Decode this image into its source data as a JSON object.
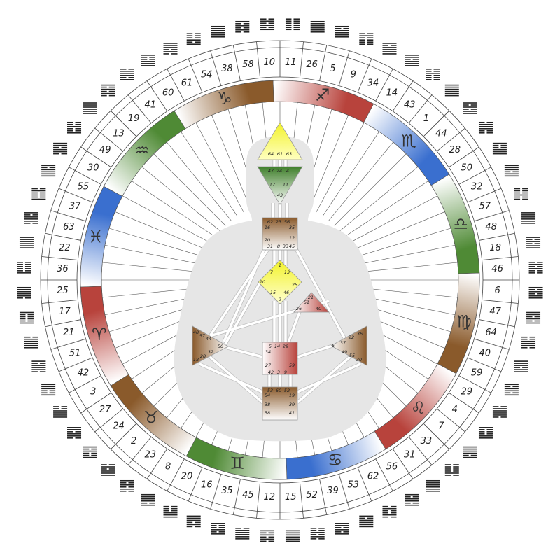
{
  "outer_ring": {
    "gates": [
      11,
      26,
      5,
      9,
      34,
      14,
      43,
      1,
      44,
      28,
      50,
      32,
      57,
      48,
      18,
      46,
      6,
      47,
      64,
      40,
      59,
      29,
      4,
      7,
      33,
      31,
      56,
      62,
      53,
      39,
      52,
      15,
      12,
      45,
      35,
      16,
      20,
      8,
      23,
      2,
      24,
      27,
      3,
      42,
      51,
      21,
      17,
      25,
      36,
      22,
      63,
      37,
      55,
      30,
      49,
      13,
      19,
      41,
      60,
      61,
      54,
      38,
      58,
      10
    ]
  },
  "zodiac": {
    "signs": [
      "♐",
      "♏",
      "♎",
      "♍",
      "♌",
      "♋",
      "♊",
      "♉",
      "♈",
      "♓",
      "♒",
      "♑"
    ]
  },
  "bodygraph": {
    "head": [
      64,
      61,
      63
    ],
    "ajna": [
      47,
      24,
      4,
      17,
      11,
      43
    ],
    "throat": [
      62,
      23,
      56,
      16,
      35,
      20,
      12,
      31,
      8,
      33,
      45
    ],
    "g": [
      1,
      7,
      13,
      10,
      25,
      15,
      46,
      2
    ],
    "ego": [
      21,
      51,
      26,
      40
    ],
    "spleen": [
      48,
      57,
      44,
      50,
      32,
      28,
      18
    ],
    "solar_plexus": [
      36,
      22,
      37,
      6,
      49,
      55,
      30
    ],
    "sacral": [
      5,
      14,
      29,
      34,
      27,
      59,
      42,
      3,
      9
    ],
    "root": [
      53,
      60,
      52,
      54,
      19,
      38,
      39,
      58,
      41
    ]
  }
}
